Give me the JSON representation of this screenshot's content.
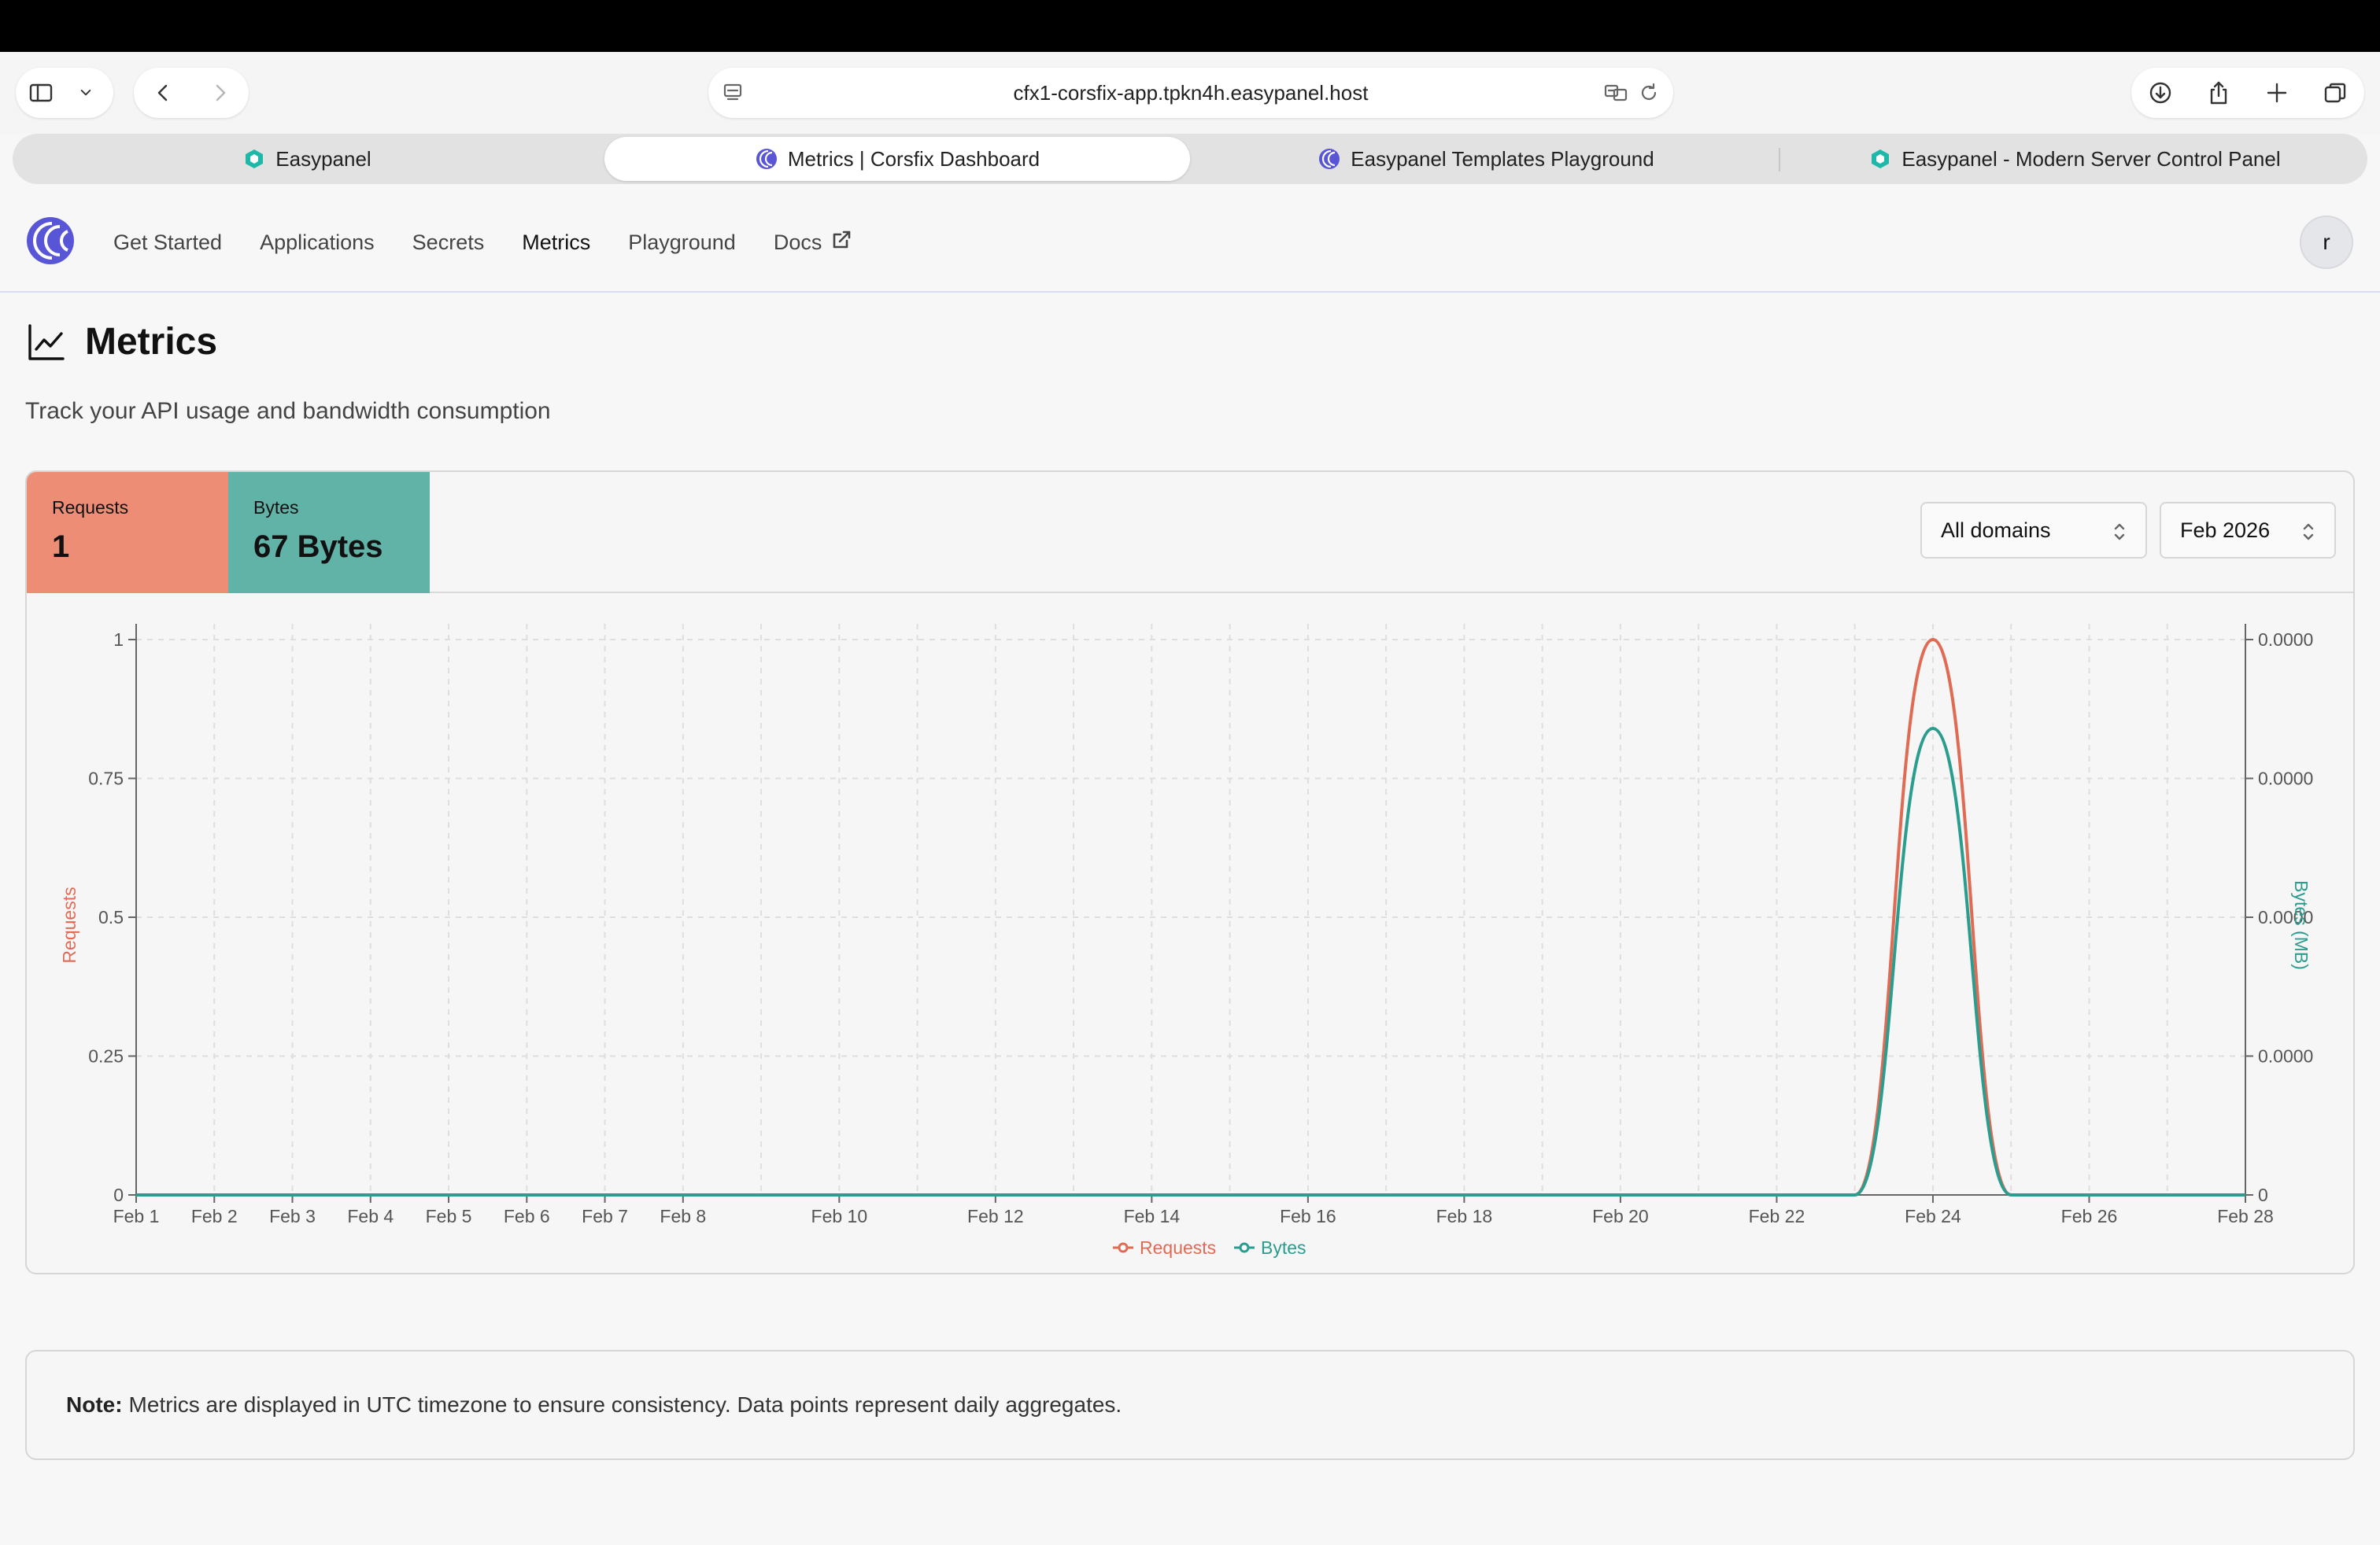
{
  "browser": {
    "url": "cfx1-corsfix-app.tpkn4h.easypanel.host",
    "tabs": [
      {
        "label": "Easypanel",
        "favicon": "easypanel-icon"
      },
      {
        "label": "Metrics | Corsfix Dashboard",
        "favicon": "corsfix-icon",
        "active": true
      },
      {
        "label": "Easypanel Templates Playground",
        "favicon": "corsfix-icon"
      },
      {
        "label": "Easypanel - Modern Server Control Panel",
        "favicon": "easypanel-icon"
      }
    ]
  },
  "nav": {
    "items": [
      "Get Started",
      "Applications",
      "Secrets",
      "Metrics",
      "Playground",
      "Docs"
    ],
    "active": "Metrics",
    "avatar": "r"
  },
  "page": {
    "title": "Metrics",
    "subtitle": "Track your API usage and bandwidth consumption"
  },
  "stats": {
    "requests_label": "Requests",
    "requests_value": "1",
    "bytes_label": "Bytes",
    "bytes_value": "67 Bytes"
  },
  "filters": {
    "domain": "All domains",
    "month": "Feb 2026"
  },
  "colors": {
    "requests": "#e06b55",
    "bytes": "#2a9d8f",
    "requests_card": "#ee8d75",
    "bytes_card": "#61b2a7"
  },
  "chart_data": {
    "type": "area",
    "x": [
      "Feb 1",
      "Feb 2",
      "Feb 3",
      "Feb 4",
      "Feb 5",
      "Feb 6",
      "Feb 7",
      "Feb 8",
      "Feb 9",
      "Feb 10",
      "Feb 11",
      "Feb 12",
      "Feb 13",
      "Feb 14",
      "Feb 15",
      "Feb 16",
      "Feb 17",
      "Feb 18",
      "Feb 19",
      "Feb 20",
      "Feb 21",
      "Feb 22",
      "Feb 23",
      "Feb 24",
      "Feb 25",
      "Feb 26",
      "Feb 27",
      "Feb 28"
    ],
    "x_tick_labels": [
      "Feb 1",
      "Feb 2",
      "Feb 3",
      "Feb 4",
      "Feb 5",
      "Feb 6",
      "Feb 7",
      "Feb 8",
      "Feb 10",
      "Feb 12",
      "Feb 14",
      "Feb 16",
      "Feb 18",
      "Feb 20",
      "Feb 22",
      "Feb 24",
      "Feb 26",
      "Feb 28"
    ],
    "series": [
      {
        "name": "Requests",
        "axis": "left",
        "values": [
          0,
          0,
          0,
          0,
          0,
          0,
          0,
          0,
          0,
          0,
          0,
          0,
          0,
          0,
          0,
          0,
          0,
          0,
          0,
          0,
          0,
          0,
          0,
          1,
          0,
          0,
          0,
          0
        ]
      },
      {
        "name": "Bytes",
        "axis": "right",
        "values": [
          0,
          0,
          0,
          0,
          0,
          0,
          0,
          0,
          0,
          0,
          0,
          0,
          0,
          0,
          0,
          0,
          0,
          0,
          0,
          0,
          0,
          0,
          0,
          6.39e-05,
          0,
          0,
          0,
          0
        ]
      }
    ],
    "ylabel": "Requests",
    "y2label": "Bytes (MB)",
    "ylim": [
      0,
      1
    ],
    "y_ticks": [
      "0",
      "0.25",
      "0.5",
      "0.75",
      "1"
    ],
    "y2_ticks": [
      "0",
      "0.0000",
      "0.0000",
      "0.0000",
      "0.0000"
    ],
    "grid": true,
    "legend": "bottom-center"
  },
  "note": {
    "label": "Note:",
    "text": "Metrics are displayed in UTC timezone to ensure consistency. Data points represent daily aggregates."
  }
}
